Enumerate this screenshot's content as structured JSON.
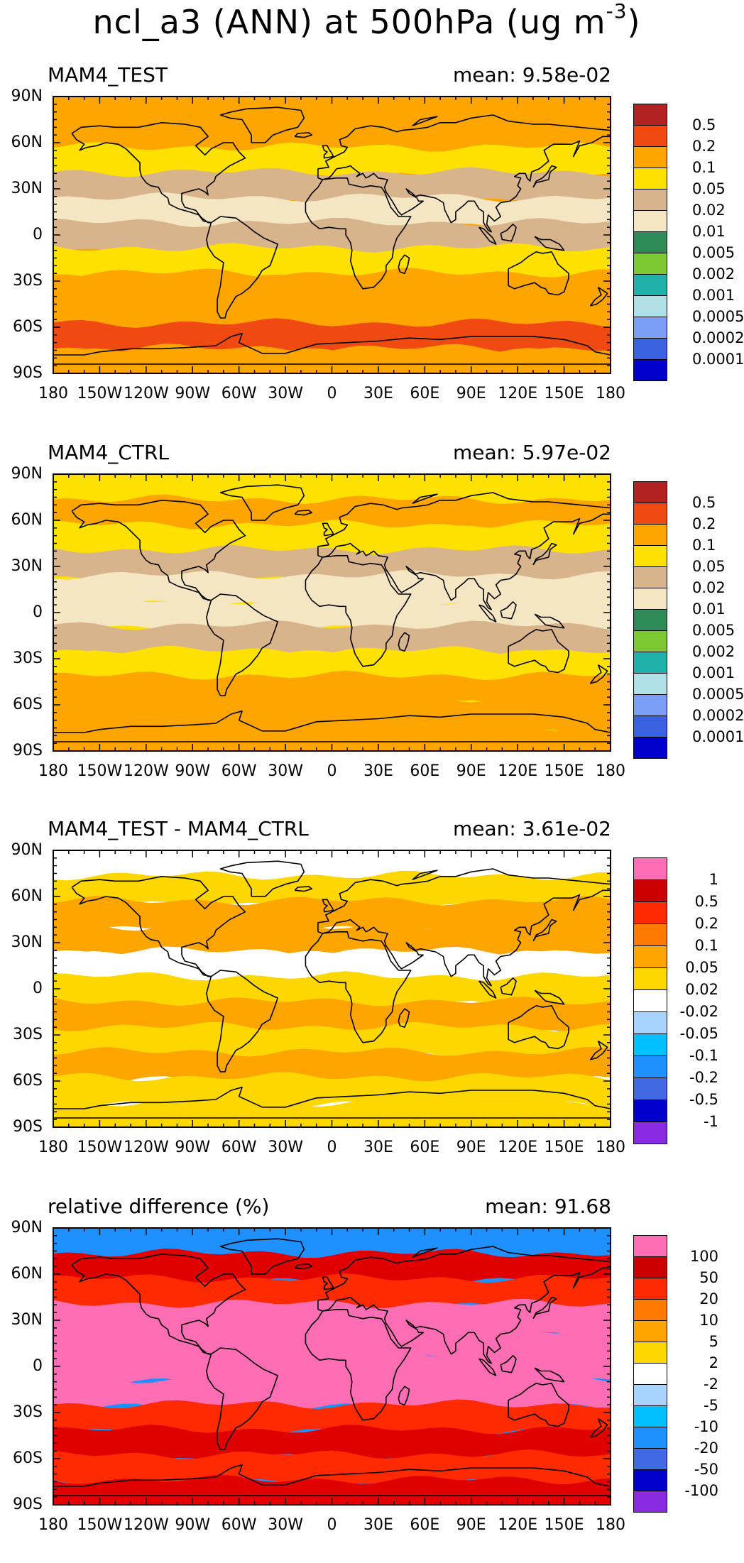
{
  "figure": {
    "title_main": "ncl_a3 (ANN) at 500hPa (ug m",
    "title_exponent": "-3",
    "title_close": ")"
  },
  "axes": {
    "lat_labels": [
      "90N",
      "60N",
      "30N",
      "0",
      "30S",
      "60S",
      "90S"
    ],
    "lon_labels": [
      "180",
      "150W",
      "120W",
      "90W",
      "60W",
      "30W",
      "0",
      "30E",
      "60E",
      "90E",
      "120E",
      "150E",
      "180"
    ]
  },
  "panels": [
    {
      "title": "MAM4_TEST",
      "mean": "mean: 9.58e-02",
      "colorbar": {
        "labels": [
          "0.5",
          "0.2",
          "0.1",
          "0.05",
          "0.02",
          "0.01",
          "0.005",
          "0.002",
          "0.001",
          "0.0005",
          "0.0002",
          "0.0001"
        ],
        "colors": [
          "#b22222",
          "#f04a12",
          "#ffa500",
          "#ffe100",
          "#d8b48c",
          "#f5e6c3",
          "#2e8b57",
          "#7cc832",
          "#20b2aa",
          "#b0e0e6",
          "#7b9ff5",
          "#3a62e0",
          "#0000cd"
        ]
      },
      "zones": [
        "#ffa500",
        "#ffa500",
        "#ffe100",
        "#d8b48c",
        "#f5e6c3",
        "#d8b48c",
        "#ffe100",
        "#ffa500",
        "#ffa500",
        "#f04a12",
        "#ffa500"
      ]
    },
    {
      "title": "MAM4_CTRL",
      "mean": "mean: 5.97e-02",
      "colorbar": {
        "labels": [
          "0.5",
          "0.2",
          "0.1",
          "0.05",
          "0.02",
          "0.01",
          "0.005",
          "0.002",
          "0.001",
          "0.0005",
          "0.0002",
          "0.0001"
        ],
        "colors": [
          "#b22222",
          "#f04a12",
          "#ffa500",
          "#ffe100",
          "#d8b48c",
          "#f5e6c3",
          "#2e8b57",
          "#7cc832",
          "#20b2aa",
          "#b0e0e6",
          "#7b9ff5",
          "#3a62e0",
          "#0000cd"
        ]
      },
      "zones": [
        "#ffe100",
        "#ffa500",
        "#ffe100",
        "#d8b48c",
        "#f5e6c3",
        "#f5e6c3",
        "#d8b48c",
        "#ffe100",
        "#ffa500",
        "#ffa500",
        "#ffa500"
      ]
    },
    {
      "title": "MAM4_TEST - MAM4_CTRL",
      "mean": "mean: 3.61e-02",
      "colorbar": {
        "labels": [
          "1",
          "0.5",
          "0.2",
          "0.1",
          "0.05",
          "0.02",
          "-0.02",
          "-0.05",
          "-0.1",
          "-0.2",
          "-0.5",
          "-1"
        ],
        "colors": [
          "#ff6eb4",
          "#cc0000",
          "#ff2a00",
          "#ff7a00",
          "#ffa500",
          "#ffd700",
          "#ffffff",
          "#a6d4ff",
          "#00c0ff",
          "#1e90ff",
          "#4169e1",
          "#0000cd",
          "#8a2be2"
        ]
      },
      "zones": [
        "#ffffff",
        "#ffd700",
        "#ffa500",
        "#ffa500",
        "#ffffff",
        "#ffd700",
        "#ffa500",
        "#ffd700",
        "#ffa500",
        "#ffd700",
        "#ffd700"
      ]
    },
    {
      "title": "relative difference (%)",
      "mean": "mean: 91.68",
      "colorbar": {
        "labels": [
          "100",
          "50",
          "20",
          "10",
          "5",
          "2",
          "-2",
          "-5",
          "-10",
          "-20",
          "-50",
          "-100"
        ],
        "colors": [
          "#ff6eb4",
          "#cc0000",
          "#ff2a00",
          "#ff7a00",
          "#ffa500",
          "#ffd700",
          "#ffffff",
          "#a6d4ff",
          "#00c0ff",
          "#1e90ff",
          "#4169e1",
          "#0000cd",
          "#8a2be2"
        ]
      },
      "zones": [
        "#1e90ff",
        "#e00000",
        "#ff2a00",
        "#ff6eb4",
        "#ff6eb4",
        "#ff6eb4",
        "#ff6eb4",
        "#ff2a00",
        "#e00000",
        "#ff2a00",
        "#e00000"
      ]
    }
  ]
}
